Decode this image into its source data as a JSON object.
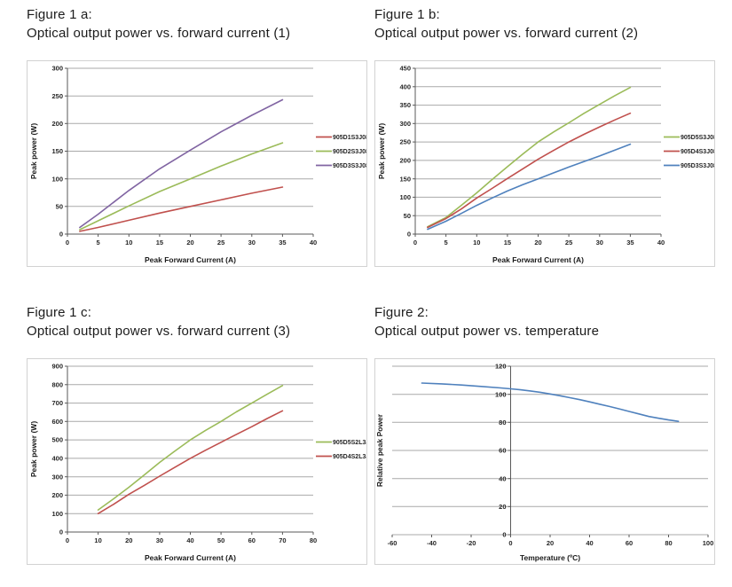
{
  "colors": {
    "red": "#C0504D",
    "green": "#9BBB59",
    "purple": "#8064A2",
    "blue": "#4F81BD",
    "gridline": "#a9a9a9",
    "axis": "#595959",
    "panel_border": "#d2d2d2",
    "text": "#1c1c1c"
  },
  "chart_data": [
    {
      "id": "figure-1a",
      "type": "line",
      "heading": "Figure 1 a:",
      "subheading": "Optical output power vs. forward current (1)",
      "xlabel": "Peak Forward Current (A)",
      "ylabel": "Peak power (W)",
      "xlim": [
        0,
        40
      ],
      "ylim": [
        0,
        300
      ],
      "xticks": [
        0,
        5,
        10,
        15,
        20,
        25,
        30,
        35,
        40
      ],
      "yticks": [
        0,
        50,
        100,
        150,
        200,
        250,
        300
      ],
      "grid": "horizontal",
      "legend_position": "right",
      "y_axis_at_zero": false,
      "series": [
        {
          "name": "905D1S3J08",
          "color": "#C0504D",
          "points": [
            [
              2,
              5
            ],
            [
              5,
              12
            ],
            [
              10,
              25
            ],
            [
              15,
              38
            ],
            [
              20,
              50
            ],
            [
              25,
              62
            ],
            [
              30,
              74
            ],
            [
              35,
              85
            ]
          ]
        },
        {
          "name": "905D2S3J08",
          "color": "#9BBB59",
          "points": [
            [
              2,
              8
            ],
            [
              5,
              24
            ],
            [
              10,
              51
            ],
            [
              15,
              77
            ],
            [
              20,
              100
            ],
            [
              25,
              123
            ],
            [
              30,
              145
            ],
            [
              35,
              165
            ]
          ]
        },
        {
          "name": "905D3S3J08",
          "color": "#8064A2",
          "points": [
            [
              2,
              12
            ],
            [
              5,
              36
            ],
            [
              10,
              79
            ],
            [
              15,
              118
            ],
            [
              20,
              152
            ],
            [
              25,
              185
            ],
            [
              30,
              215
            ],
            [
              35,
              243
            ]
          ]
        }
      ]
    },
    {
      "id": "figure-1b",
      "type": "line",
      "heading": "Figure 1 b:",
      "subheading": "Optical output power vs. forward current (2)",
      "xlabel": "Peak Forward Current (A)",
      "ylabel": "Peak power (W)",
      "xlim": [
        0,
        40
      ],
      "ylim": [
        0,
        450
      ],
      "xticks": [
        0,
        5,
        10,
        15,
        20,
        25,
        30,
        35,
        40
      ],
      "yticks": [
        0,
        50,
        100,
        150,
        200,
        250,
        300,
        350,
        400,
        450
      ],
      "grid": "horizontal",
      "legend_position": "right",
      "y_axis_at_zero": false,
      "series": [
        {
          "name": "905D5S3J08",
          "color": "#9BBB59",
          "points": [
            [
              2,
              20
            ],
            [
              5,
              45
            ],
            [
              7.5,
              78
            ],
            [
              10,
              112
            ],
            [
              12.5,
              148
            ],
            [
              15,
              183
            ],
            [
              17.5,
              217
            ],
            [
              20,
              250
            ],
            [
              22.5,
              277
            ],
            [
              25,
              302
            ],
            [
              27.5,
              328
            ],
            [
              30,
              352
            ],
            [
              32.5,
              376
            ],
            [
              35,
              398
            ]
          ]
        },
        {
          "name": "905D4S3J08",
          "color": "#C0504D",
          "points": [
            [
              2,
              18
            ],
            [
              5,
              42
            ],
            [
              7.5,
              68
            ],
            [
              10,
              98
            ],
            [
              12.5,
              124
            ],
            [
              15,
              151
            ],
            [
              17.5,
              177
            ],
            [
              20,
              203
            ],
            [
              22.5,
              227
            ],
            [
              25,
              250
            ],
            [
              27.5,
              271
            ],
            [
              30,
              291
            ],
            [
              32.5,
              310
            ],
            [
              35,
              328
            ]
          ]
        },
        {
          "name": "905D3S3J08",
          "color": "#4F81BD",
          "points": [
            [
              2,
              13
            ],
            [
              5,
              35
            ],
            [
              7.5,
              56
            ],
            [
              10,
              78
            ],
            [
              12.5,
              98
            ],
            [
              15,
              117
            ],
            [
              17.5,
              134
            ],
            [
              20,
              150
            ],
            [
              22.5,
              166
            ],
            [
              25,
              182
            ],
            [
              27.5,
              197
            ],
            [
              30,
              212
            ],
            [
              32.5,
              228
            ],
            [
              35,
              244
            ]
          ]
        }
      ]
    },
    {
      "id": "figure-1c",
      "type": "line",
      "heading": "Figure 1 c:",
      "subheading": "Optical output power vs. forward current (3)",
      "xlabel": "Peak Forward Current (A)",
      "ylabel": "Peak power (W)",
      "xlim": [
        0,
        80
      ],
      "ylim": [
        0,
        900
      ],
      "xticks": [
        0,
        10,
        20,
        30,
        40,
        50,
        60,
        70,
        80
      ],
      "yticks": [
        0,
        100,
        200,
        300,
        400,
        500,
        600,
        700,
        800,
        900
      ],
      "grid": "horizontal",
      "legend_position": "right",
      "y_axis_at_zero": false,
      "series": [
        {
          "name": "905D5S2L3J08",
          "color": "#9BBB59",
          "points": [
            [
              10,
              120
            ],
            [
              15,
              180
            ],
            [
              20,
              243
            ],
            [
              25,
              310
            ],
            [
              30,
              378
            ],
            [
              35,
              440
            ],
            [
              40,
              500
            ],
            [
              45,
              552
            ],
            [
              50,
              600
            ],
            [
              55,
              652
            ],
            [
              60,
              700
            ],
            [
              65,
              748
            ],
            [
              70,
              795
            ]
          ]
        },
        {
          "name": "905D4S2L3J08",
          "color": "#C0504D",
          "points": [
            [
              10,
              100
            ],
            [
              15,
              150
            ],
            [
              20,
              205
            ],
            [
              25,
              253
            ],
            [
              30,
              303
            ],
            [
              35,
              352
            ],
            [
              40,
              400
            ],
            [
              45,
              444
            ],
            [
              50,
              487
            ],
            [
              55,
              530
            ],
            [
              60,
              572
            ],
            [
              65,
              616
            ],
            [
              70,
              658
            ]
          ]
        }
      ]
    },
    {
      "id": "figure-2",
      "type": "line",
      "heading": "Figure 2:",
      "subheading": "Optical output power vs. temperature",
      "xlabel": "Temperature (ºC)",
      "ylabel": "Relative peak Power",
      "xlim": [
        -60,
        100
      ],
      "ylim": [
        0,
        120
      ],
      "xticks": [
        -60,
        -40,
        -20,
        0,
        20,
        40,
        60,
        80,
        100
      ],
      "yticks": [
        0,
        20,
        40,
        60,
        80,
        100,
        120
      ],
      "grid": "horizontal",
      "legend_position": "none",
      "y_axis_at_zero": true,
      "series": [
        {
          "name": "",
          "color": "#4F81BD",
          "points": [
            [
              -45,
              108
            ],
            [
              -35,
              107.4
            ],
            [
              -25,
              106.6
            ],
            [
              -15,
              105.6
            ],
            [
              -5,
              104.5
            ],
            [
              0,
              103.9
            ],
            [
              5,
              103.2
            ],
            [
              10,
              102.4
            ],
            [
              15,
              101.4
            ],
            [
              20,
              100.2
            ],
            [
              25,
              99
            ],
            [
              30,
              97.6
            ],
            [
              35,
              96.2
            ],
            [
              40,
              94.6
            ],
            [
              45,
              93
            ],
            [
              50,
              91.3
            ],
            [
              55,
              89.6
            ],
            [
              60,
              87.8
            ],
            [
              65,
              86
            ],
            [
              70,
              84.2
            ],
            [
              75,
              82.9
            ],
            [
              80,
              81.7
            ],
            [
              85,
              80.7
            ]
          ]
        }
      ]
    }
  ]
}
